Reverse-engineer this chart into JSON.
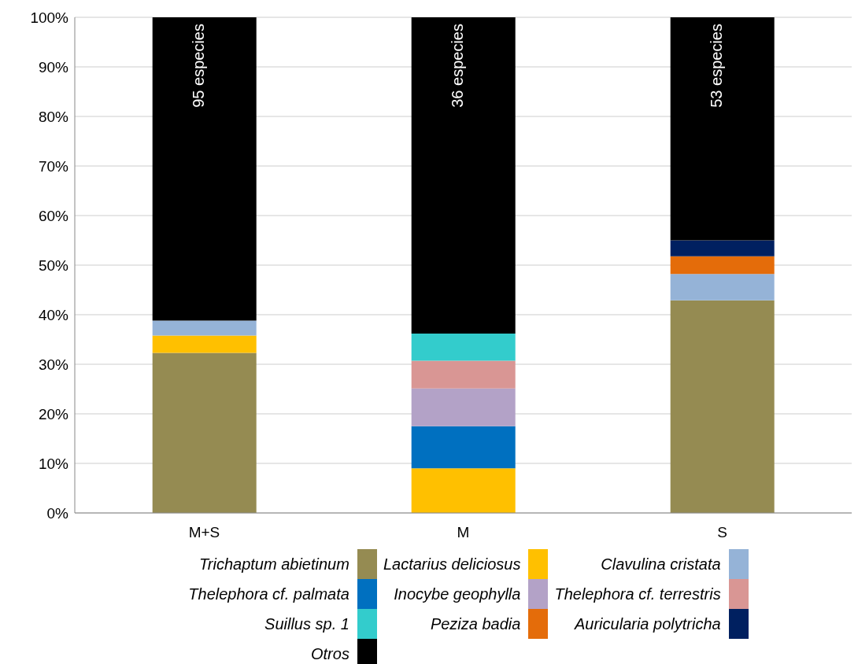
{
  "chart_data": {
    "type": "bar",
    "stacked": true,
    "categories": [
      "M+S",
      "M",
      "S"
    ],
    "series": [
      {
        "name": "Trichaptum abietinum",
        "color": "#958b52",
        "values": [
          32.3,
          null,
          42.9
        ]
      },
      {
        "name": "Lactarius deliciosus",
        "color": "#ffc000",
        "values": [
          3.5,
          9.0,
          null
        ]
      },
      {
        "name": "Clavulina cristata",
        "color": "#95b3d7",
        "values": [
          3.0,
          null,
          5.3
        ]
      },
      {
        "name": "Thelephora cf. palmata",
        "color": "#0070c0",
        "values": [
          null,
          8.5,
          null
        ]
      },
      {
        "name": "Inocybe geophylla",
        "color": "#b3a2c7",
        "values": [
          null,
          7.6,
          null
        ]
      },
      {
        "name": "Thelephora cf. terrestris",
        "color": "#d99694",
        "values": [
          null,
          5.6,
          null
        ]
      },
      {
        "name": "Suillus sp. 1",
        "color": "#33cccc",
        "values": [
          null,
          5.5,
          null
        ]
      },
      {
        "name": "Peziza badia",
        "color": "#e46c0a",
        "values": [
          null,
          null,
          3.6
        ]
      },
      {
        "name": "Auricularia polytricha",
        "color": "#002060",
        "values": [
          null,
          null,
          3.2
        ]
      },
      {
        "name": "Otros",
        "color": "#000000",
        "values": [
          61.2,
          63.8,
          45.0
        ]
      }
    ],
    "ylim": [
      0,
      100
    ],
    "yticks": [
      {
        "value": 0,
        "label": "0%"
      },
      {
        "value": 10,
        "label": "10%"
      },
      {
        "value": 20,
        "label": "20%"
      },
      {
        "value": 30,
        "label": "30%"
      },
      {
        "value": 40,
        "label": "40%"
      },
      {
        "value": 50,
        "label": "50%"
      },
      {
        "value": 60,
        "label": "60%"
      },
      {
        "value": 70,
        "label": "70%"
      },
      {
        "value": 80,
        "label": "80%"
      },
      {
        "value": 90,
        "label": "90%"
      },
      {
        "value": 100,
        "label": "100%"
      }
    ],
    "grid": "y",
    "legend": "bottom",
    "annotations": [
      "95 especies",
      "36 especies",
      "53 especies"
    ]
  }
}
